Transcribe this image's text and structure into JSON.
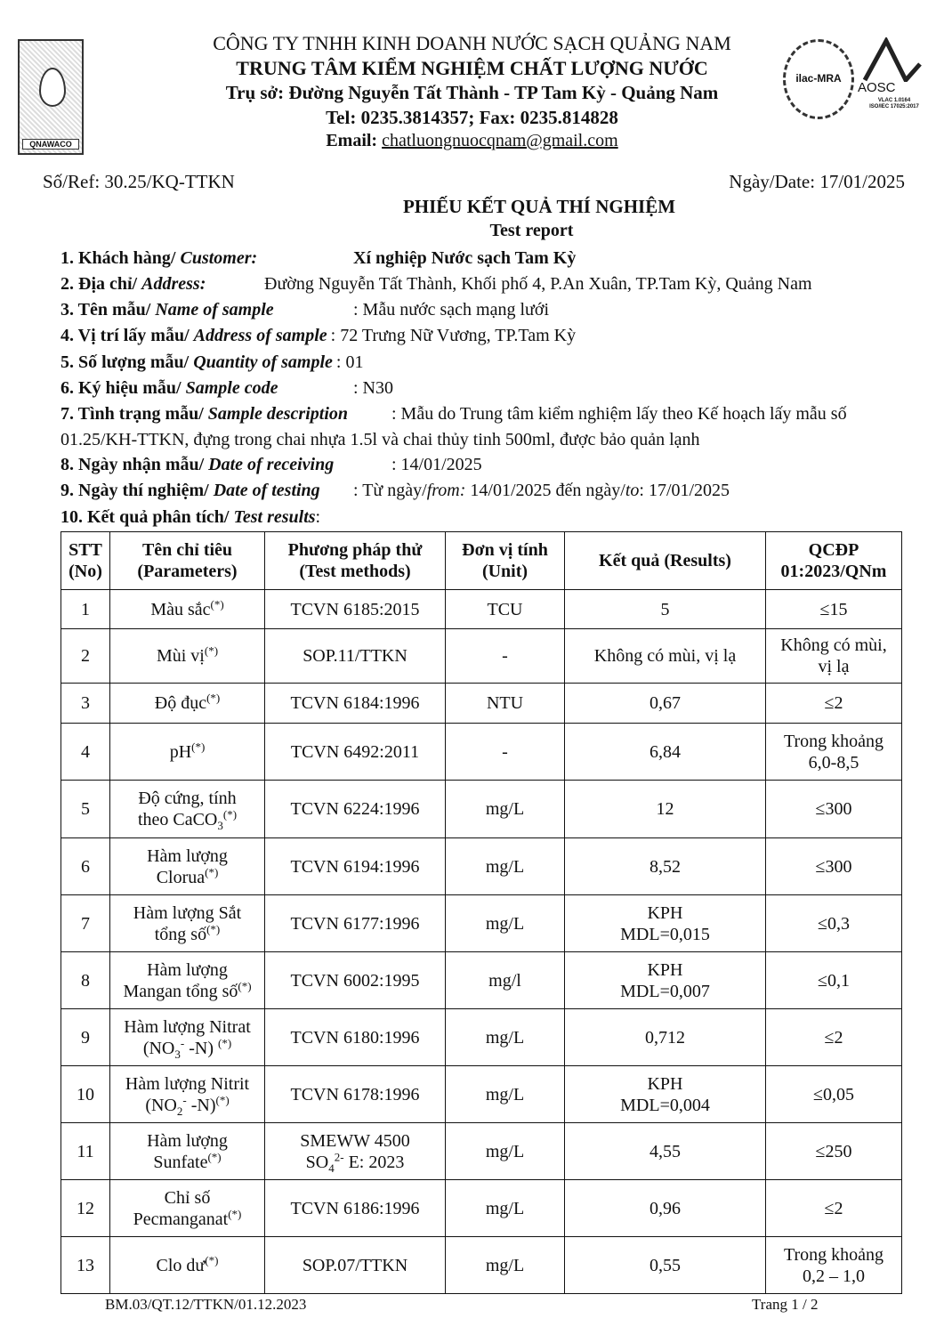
{
  "header": {
    "company": "CÔNG TY TNHH KINH DOANH NƯỚC SẠCH QUẢNG NAM",
    "center": "TRUNG TÂM KIỂM NGHIỆM CHẤT LƯỢNG NƯỚC",
    "address": "Trụ sở: Đường Nguyễn Tất Thành - TP Tam Kỳ -  Quảng Nam",
    "phone": "Tel: 0235.3814357; Fax: 0235.814828",
    "email_label": "Email: ",
    "email": "chatluongnuocqnam@gmail.com",
    "logo_left_text": "QNAWACO",
    "logo_ilac_text": "ilac-MRA",
    "logo_aosc_text": "AOSC",
    "logo_aosc_sub": [
      "VLAC 1.0164",
      "ISO/IEC 17025:2017"
    ]
  },
  "ref": "Số/Ref: 30.25/KQ-TTKN",
  "date": "Ngày/Date: 17/01/2025",
  "title": "PHIẾU KẾT QUẢ THÍ NGHIỆM",
  "subtitle": "Test report",
  "fields": [
    {
      "label": "1. Khách hàng/ ",
      "label_en": "Customer:",
      "value": "Xí nghiệp Nước sạch Tam Kỳ"
    },
    {
      "label": "2. Địa chỉ/ ",
      "label_en": "Address:",
      "value": "Đường Nguyễn Tất Thành, Khối phố 4, P.An Xuân, TP.Tam Kỳ, Quảng Nam"
    },
    {
      "label": "3. Tên mẫu/ ",
      "label_en": "Name of sample",
      "value": ": Mẫu nước sạch mạng lưới"
    },
    {
      "label": "4. Vị trí lấy mẫu/ ",
      "label_en": "Address of sample",
      "value": ": 72 Trưng Nữ Vương, TP.Tam Kỳ"
    },
    {
      "label": "5. Số lượng mẫu/ ",
      "label_en": "Quantity of sample",
      "value": ": 01"
    },
    {
      "label": "6. Ký hiệu mẫu/ ",
      "label_en": "Sample code",
      "value": ": N30"
    },
    {
      "label": "7. Tình trạng mẫu/ ",
      "label_en": "Sample description",
      "value": ": Mẫu do Trung tâm kiểm nghiệm lấy theo Kế hoạch lấy mẫu số",
      "value2": "01.25/KH-TTKN, đựng trong chai nhựa 1.5l và chai thủy tinh 500ml, được bảo quản lạnh"
    },
    {
      "label": "8. Ngày nhận mẫu/ ",
      "label_en": "Date of receiving",
      "value": ": 14/01/2025"
    },
    {
      "label": "9. Ngày thí nghiệm/ ",
      "label_en": "Date of testing",
      "value_pre": ": Từ ngày/",
      "value_from": "from:",
      "value_mid": " 14/01/2025  đến ngày/",
      "value_to": "to",
      "value_end": ": 17/01/2025"
    },
    {
      "label": "10. Kết quả phân tích/ ",
      "label_en": "Test results",
      "value": ":"
    }
  ],
  "table": {
    "headers": [
      [
        "STT",
        "(No)"
      ],
      [
        "Tên chỉ tiêu",
        "(Parameters)"
      ],
      [
        "Phương pháp thử",
        "(Test methods)"
      ],
      [
        "Đơn vị tính",
        "(Unit)"
      ],
      [
        "Kết quả (Results)"
      ],
      [
        "QCĐP",
        "01:2023/QNm"
      ]
    ],
    "rows": [
      {
        "no": "1",
        "param": [
          [
            {
              "t": "Màu sắc"
            },
            {
              "sup": "(*)"
            }
          ]
        ],
        "method": [
          [
            {
              "t": "TCVN 6185:2015"
            }
          ]
        ],
        "unit": "TCU",
        "result": [
          "5"
        ],
        "limit": [
          "≤15"
        ]
      },
      {
        "no": "2",
        "param": [
          [
            {
              "t": "Mùi vị"
            },
            {
              "sup": "(*)"
            }
          ]
        ],
        "method": [
          [
            {
              "t": "SOP.11/TTKN"
            }
          ]
        ],
        "unit": "-",
        "result": [
          "Không có mùi, vị lạ"
        ],
        "limit": [
          "Không có mùi,",
          "vị lạ"
        ]
      },
      {
        "no": "3",
        "param": [
          [
            {
              "t": "Độ đục"
            },
            {
              "sup": "(*)"
            }
          ]
        ],
        "method": [
          [
            {
              "t": "TCVN 6184:1996"
            }
          ]
        ],
        "unit": "NTU",
        "result": [
          "0,67"
        ],
        "limit": [
          "≤2"
        ]
      },
      {
        "no": "4",
        "param": [
          [
            {
              "t": "pH"
            },
            {
              "sup": "(*)"
            }
          ]
        ],
        "method": [
          [
            {
              "t": "TCVN 6492:2011"
            }
          ]
        ],
        "unit": "-",
        "result": [
          "6,84"
        ],
        "limit": [
          "Trong khoảng",
          "6,0-8,5"
        ]
      },
      {
        "no": "5",
        "param": [
          [
            {
              "t": "Độ cứng, tính"
            }
          ],
          [
            {
              "t": "theo CaCO"
            },
            {
              "sub": "3"
            },
            {
              "sup": "(*)"
            }
          ]
        ],
        "method": [
          [
            {
              "t": "TCVN 6224:1996"
            }
          ]
        ],
        "unit": "mg/L",
        "result": [
          "12"
        ],
        "limit": [
          "≤300"
        ]
      },
      {
        "no": "6",
        "param": [
          [
            {
              "t": "Hàm lượng"
            }
          ],
          [
            {
              "t": "Clorua"
            },
            {
              "sup": "(*)"
            }
          ]
        ],
        "method": [
          [
            {
              "t": "TCVN 6194:1996"
            }
          ]
        ],
        "unit": "mg/L",
        "result": [
          "8,52"
        ],
        "limit": [
          "≤300"
        ]
      },
      {
        "no": "7",
        "param": [
          [
            {
              "t": "Hàm lượng Sắt"
            }
          ],
          [
            {
              "t": "tổng số"
            },
            {
              "sup": "(*)"
            }
          ]
        ],
        "method": [
          [
            {
              "t": "TCVN 6177:1996"
            }
          ]
        ],
        "unit": "mg/L",
        "result": [
          "KPH",
          "MDL=0,015"
        ],
        "limit": [
          "≤0,3"
        ]
      },
      {
        "no": "8",
        "param": [
          [
            {
              "t": "Hàm lượng"
            }
          ],
          [
            {
              "t": "Mangan tổng số"
            },
            {
              "sup": "(*)"
            }
          ]
        ],
        "method": [
          [
            {
              "t": "TCVN 6002:1995"
            }
          ]
        ],
        "unit": "mg/l",
        "result": [
          "KPH",
          "MDL=0,007"
        ],
        "limit": [
          "≤0,1"
        ]
      },
      {
        "no": "9",
        "param": [
          [
            {
              "t": "Hàm lượng Nitrat"
            }
          ],
          [
            {
              "t": "(NO"
            },
            {
              "sub": "3"
            },
            {
              "sup": "-"
            },
            {
              "t": " -N) "
            },
            {
              "sup": "(*)"
            }
          ]
        ],
        "method": [
          [
            {
              "t": "TCVN 6180:1996"
            }
          ]
        ],
        "unit": "mg/L",
        "result": [
          "0,712"
        ],
        "limit": [
          "≤2"
        ]
      },
      {
        "no": "10",
        "param": [
          [
            {
              "t": "Hàm lượng Nitrit"
            }
          ],
          [
            {
              "t": "(NO"
            },
            {
              "sub": "2"
            },
            {
              "sup": "-"
            },
            {
              "t": " -N)"
            },
            {
              "sup": "(*)"
            }
          ]
        ],
        "method": [
          [
            {
              "t": "TCVN 6178:1996"
            }
          ]
        ],
        "unit": "mg/L",
        "result": [
          "KPH",
          "MDL=0,004"
        ],
        "limit": [
          "≤0,05"
        ]
      },
      {
        "no": "11",
        "param": [
          [
            {
              "t": "Hàm lượng"
            }
          ],
          [
            {
              "t": "Sunfate"
            },
            {
              "sup": "(*)"
            }
          ]
        ],
        "method": [
          [
            {
              "t": "SMEWW 4500"
            }
          ],
          [
            {
              "t": "SO"
            },
            {
              "sub": "4"
            },
            {
              "sup": "2-"
            },
            {
              "t": " E: 2023"
            }
          ]
        ],
        "unit": "mg/L",
        "result": [
          "4,55"
        ],
        "limit": [
          "≤250"
        ]
      },
      {
        "no": "12",
        "param": [
          [
            {
              "t": "Chỉ số"
            }
          ],
          [
            {
              "t": "Pecmanganat"
            },
            {
              "sup": "(*)"
            }
          ]
        ],
        "method": [
          [
            {
              "t": "TCVN 6186:1996"
            }
          ]
        ],
        "unit": "mg/L",
        "result": [
          "0,96"
        ],
        "limit": [
          "≤2"
        ]
      },
      {
        "no": "13",
        "param": [
          [
            {
              "t": "Clo dư"
            },
            {
              "sup": "(*)"
            }
          ]
        ],
        "method": [
          [
            {
              "t": "SOP.07/TTKN"
            }
          ]
        ],
        "unit": "mg/L",
        "result": [
          "0,55"
        ],
        "limit": [
          "Trong khoảng",
          "0,2 – 1,0"
        ]
      }
    ]
  },
  "footer": {
    "form_code": "BM.03/QT.12/TTKN/01.12.2023",
    "page": "Trang 1 / 2"
  }
}
